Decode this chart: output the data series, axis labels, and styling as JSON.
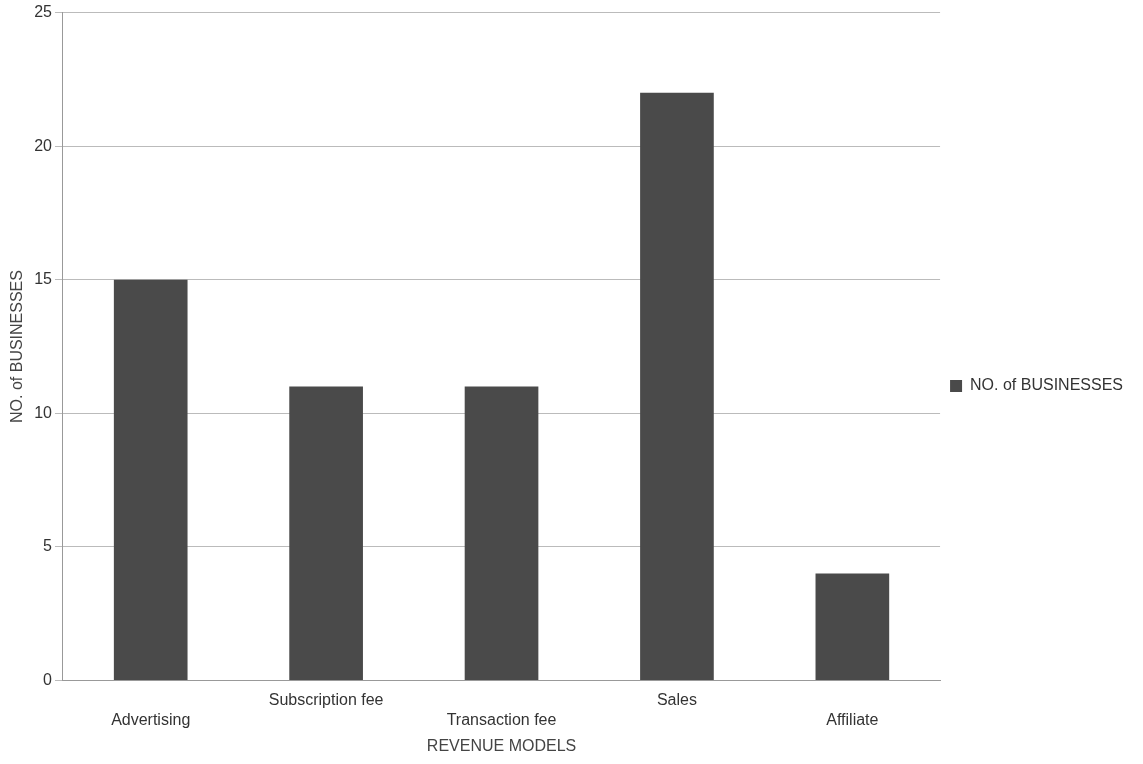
{
  "chart_data": {
    "type": "bar",
    "xlabel": "REVENUE MODELS",
    "ylabel": "NO. of BUSINESSES",
    "categories": [
      "Advertising",
      "Subscription fee",
      "Transaction fee",
      "Sales",
      "Affiliate"
    ],
    "series": [
      {
        "name": "NO. of BUSINESSES",
        "color": "#4a4a4a",
        "values": [
          15,
          11,
          11,
          22,
          4
        ]
      }
    ],
    "ylim": [
      0,
      25
    ],
    "yticks": [
      0,
      5,
      10,
      15,
      20,
      25
    ],
    "grid": "y",
    "legend": "right"
  }
}
